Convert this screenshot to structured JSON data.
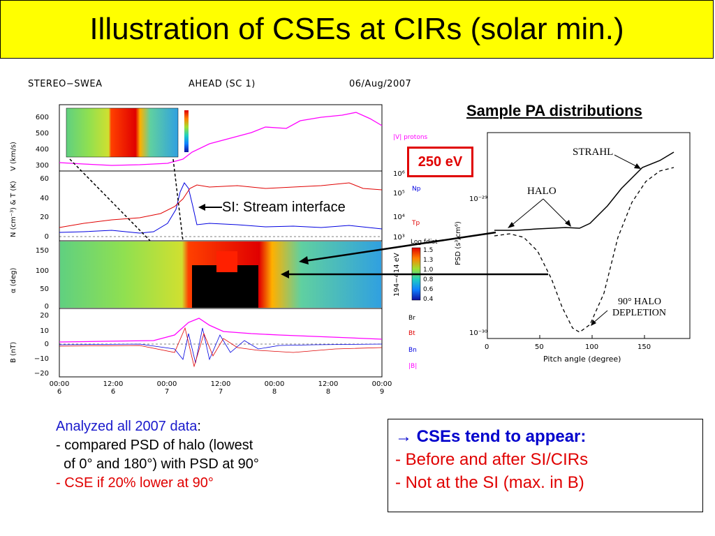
{
  "title": "Illustration of CSEs at CIRs (solar min.)",
  "plot": {
    "header_left": "STEREO−SWEA",
    "header_center": "AHEAD (SC 1)",
    "header_right": "06/Aug/2007",
    "panels": {
      "velocity": {
        "ylabel": "V (km/s)",
        "ticks": [
          "600",
          "500",
          "400",
          "300"
        ],
        "legend": "|V| protons"
      },
      "density": {
        "ylabel": "N (cm⁻³) & T (K)",
        "ticks": [
          "60",
          "40",
          "20",
          "0"
        ],
        "right_ticks": [
          "10⁶",
          "10⁵",
          "10⁴",
          "10³"
        ],
        "legend_np": "Np",
        "legend_tp": "Tp"
      },
      "pitch": {
        "ylabel": "α (deg)",
        "ticks": [
          "150",
          "100",
          "50",
          "0"
        ],
        "right_label": "194−414 eV",
        "colorbar_title": "Log fdist",
        "colorbar_ticks": [
          "1.5",
          "1.3",
          "1.0",
          "0.8",
          "0.6",
          "0.4"
        ]
      },
      "field": {
        "ylabel": "B (nT)",
        "ticks": [
          "20",
          "10",
          "0",
          "−10",
          "−20"
        ],
        "legend": [
          "Br",
          "Bt",
          "Bn",
          "|B|"
        ]
      }
    },
    "time_ticks": [
      {
        "time": "00:00",
        "day": "6"
      },
      {
        "time": "12:00",
        "day": "6"
      },
      {
        "time": "00:00",
        "day": "7"
      },
      {
        "time": "12:00",
        "day": "7"
      },
      {
        "time": "00:00",
        "day": "8"
      },
      {
        "time": "12:00",
        "day": "8"
      },
      {
        "time": "00:00",
        "day": "9"
      }
    ],
    "si_label": "SI: Stream interface"
  },
  "sample": {
    "title": "Sample PA distributions",
    "energy_box": "250 eV",
    "ylabel": "PSD (s³/cm⁶)",
    "ytick_top": "10⁻²⁹",
    "ytick_bottom": "10⁻³⁰",
    "xlabel": "Pitch angle (degree)",
    "xticks": [
      "0",
      "50",
      "100",
      "150"
    ],
    "labels": {
      "strahl": "STRAHL",
      "halo": "HALO",
      "depletion_1": "90° HALO",
      "depletion_2": "DEPLETION"
    }
  },
  "analysis": {
    "line1_blue": "Analyzed all 2007 data",
    "line1_colon": ":",
    "line2": "- compared PSD of halo (lowest",
    "line3": "  of 0° and 180°) with PSD at 90°",
    "line4": "- CSE if 20% lower at 90°"
  },
  "conclusion": {
    "arrow": "→",
    "heading": "CSEs tend to appear:",
    "item1": "- Before and after SI/CIRs",
    "item2": "- Not at the SI (max. in B)"
  },
  "colors": {
    "title_bg": "#ffff00",
    "magenta": "#ff00ff",
    "red": "#e00000",
    "blue": "#0000e0",
    "link_blue": "#1a1acc"
  }
}
